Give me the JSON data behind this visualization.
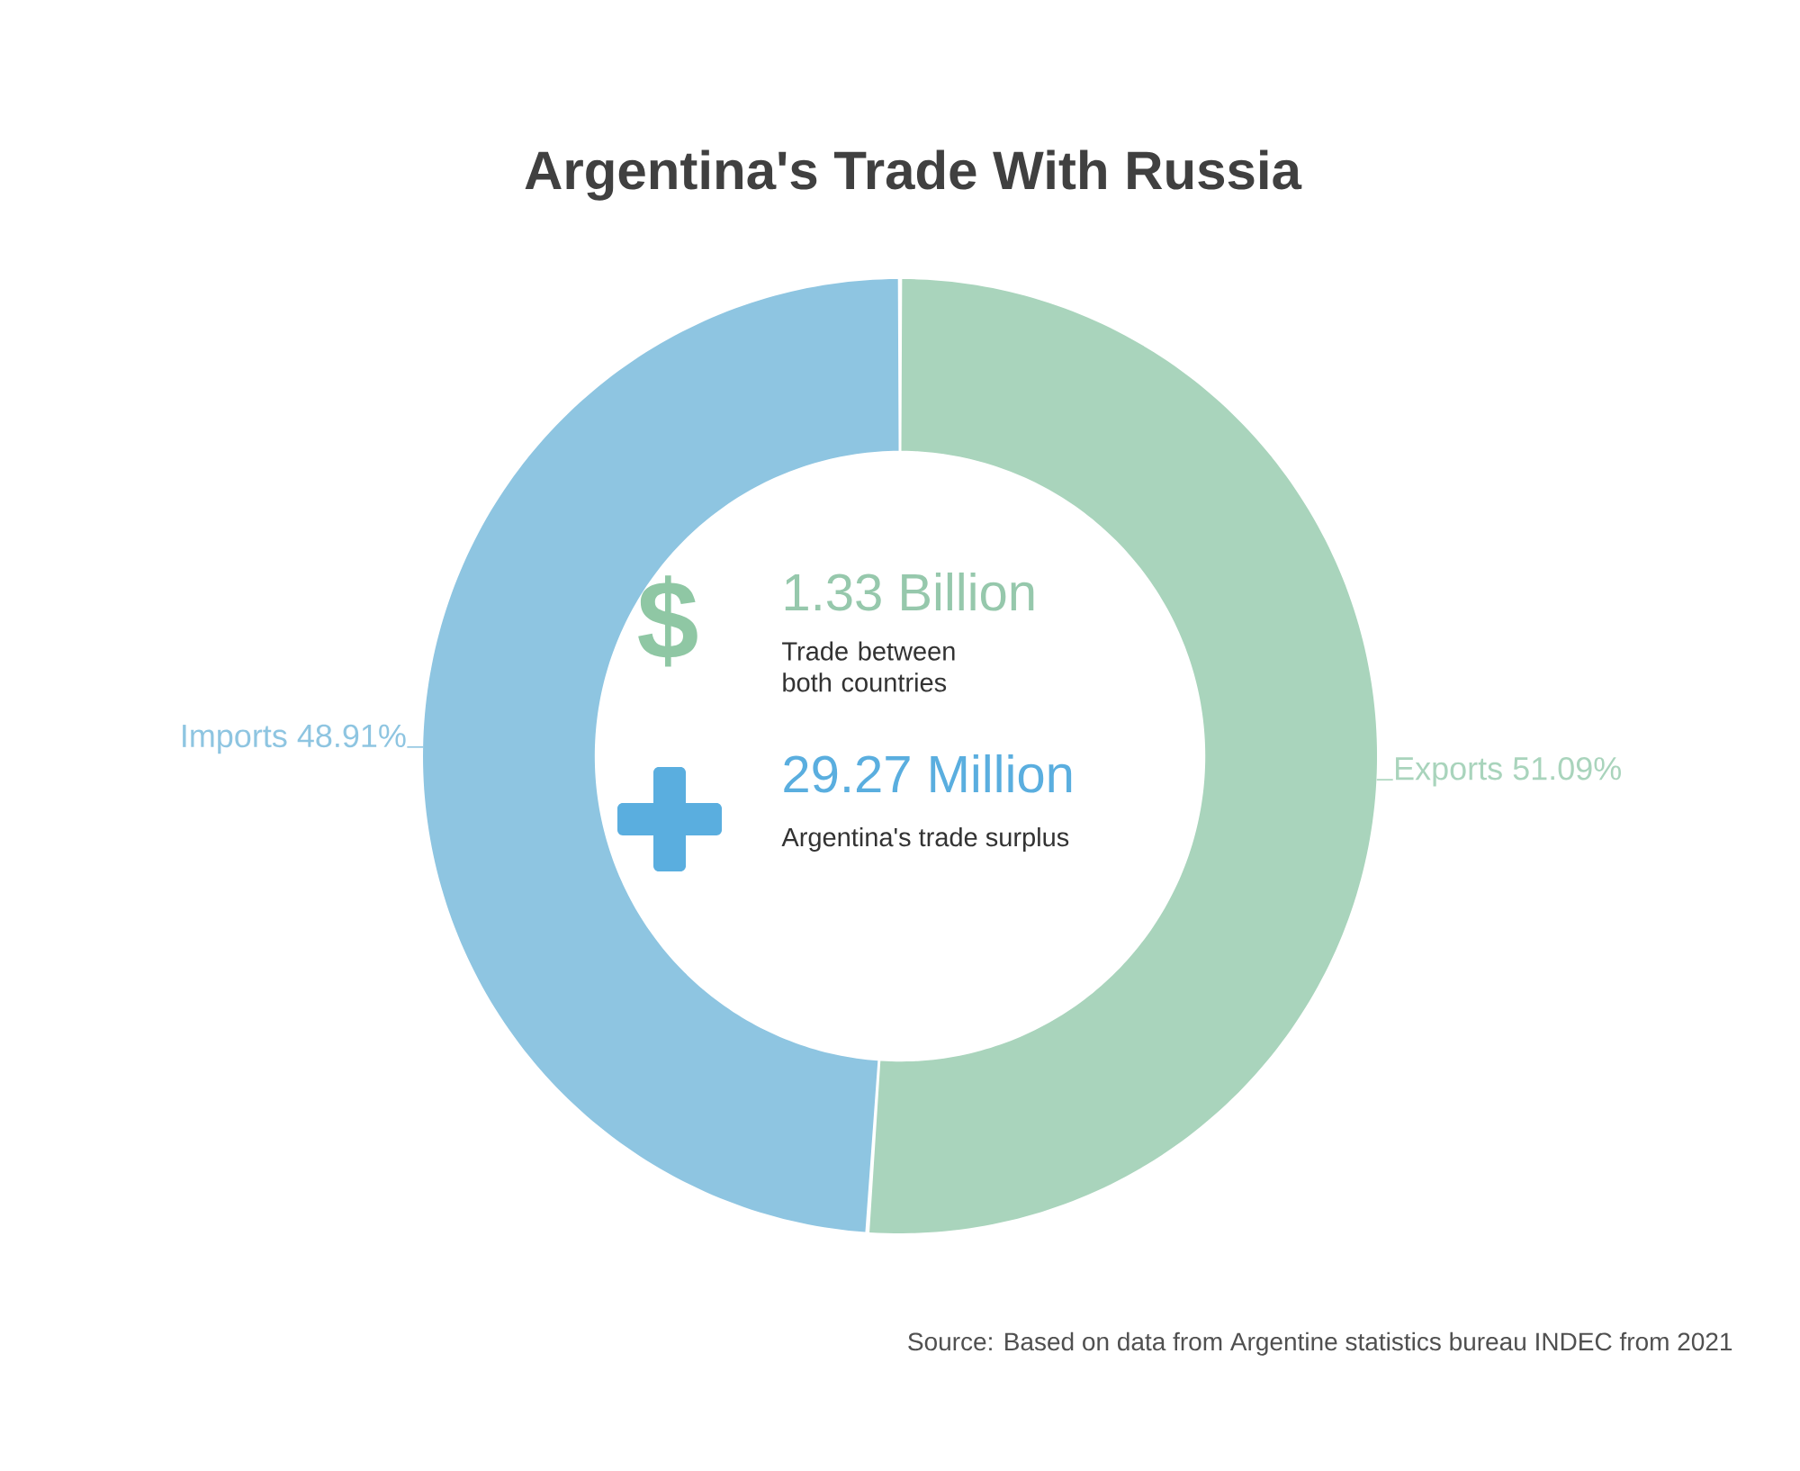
{
  "chart_data": {
    "type": "donut",
    "title": "Argentina's Trade With Russia",
    "categories": [
      "Exports",
      "Imports"
    ],
    "values": [
      51.09,
      48.91
    ],
    "colors": [
      "#a9d4bc",
      "#8ec5e1"
    ],
    "value_labels": [
      "51.09%",
      "48.91%"
    ],
    "annotations": [
      "$",
      "1.33 Billion",
      "Trade between both countries",
      "29.27 Million",
      "Argentina's trade surplus",
      "Source: Based on data from Argentine statistics bureau INDEC from 2021"
    ]
  }
}
